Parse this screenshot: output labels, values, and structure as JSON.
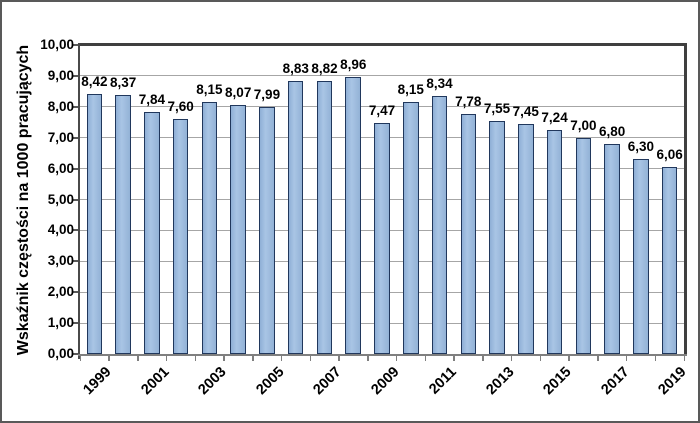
{
  "chart_data": {
    "type": "bar",
    "title": "",
    "xlabel": "",
    "ylabel": "Wskaźnik częstości na 1000 pracujących",
    "ylim": [
      0,
      10
    ],
    "ytick_step": 1,
    "ytick_labels": [
      "0,00",
      "1,00",
      "2,00",
      "3,00",
      "4,00",
      "5,00",
      "6,00",
      "7,00",
      "8,00",
      "9,00",
      "10,00"
    ],
    "categories": [
      "1999",
      "2000",
      "2001",
      "2002",
      "2003",
      "2004",
      "2005",
      "2006",
      "2007",
      "2008",
      "2009",
      "2010",
      "2011",
      "2012",
      "2013",
      "2014",
      "2015",
      "2016",
      "2017",
      "2018",
      "2019"
    ],
    "xtick_labels_shown": [
      "1999",
      "2001",
      "2003",
      "2005",
      "2007",
      "2009",
      "2011",
      "2013",
      "2015",
      "2017",
      "2019"
    ],
    "values": [
      8.42,
      8.37,
      7.84,
      7.6,
      8.15,
      8.07,
      7.99,
      8.83,
      8.82,
      8.96,
      7.47,
      8.15,
      8.34,
      7.78,
      7.55,
      7.45,
      7.24,
      7.0,
      6.8,
      6.3,
      6.06
    ],
    "value_labels": [
      "8,42",
      "8,37",
      "7,84",
      "7,60",
      "8,15",
      "8,07",
      "7,99",
      "8,83",
      "8,82",
      "8,96",
      "7,47",
      "8,15",
      "8,34",
      "7,78",
      "7,55",
      "7,45",
      "7,24",
      "7,00",
      "6,80",
      "6,30",
      "6,06"
    ],
    "legend": "none",
    "grid": true,
    "colors": {
      "bar_fill": "#95B3D7",
      "bar_border": "#20375C",
      "gridline": "#A6A6A6",
      "axis": "#595959",
      "plot_border": "#3F3F3F",
      "outer_border": "#595959",
      "background": "#FFFFFF"
    }
  }
}
